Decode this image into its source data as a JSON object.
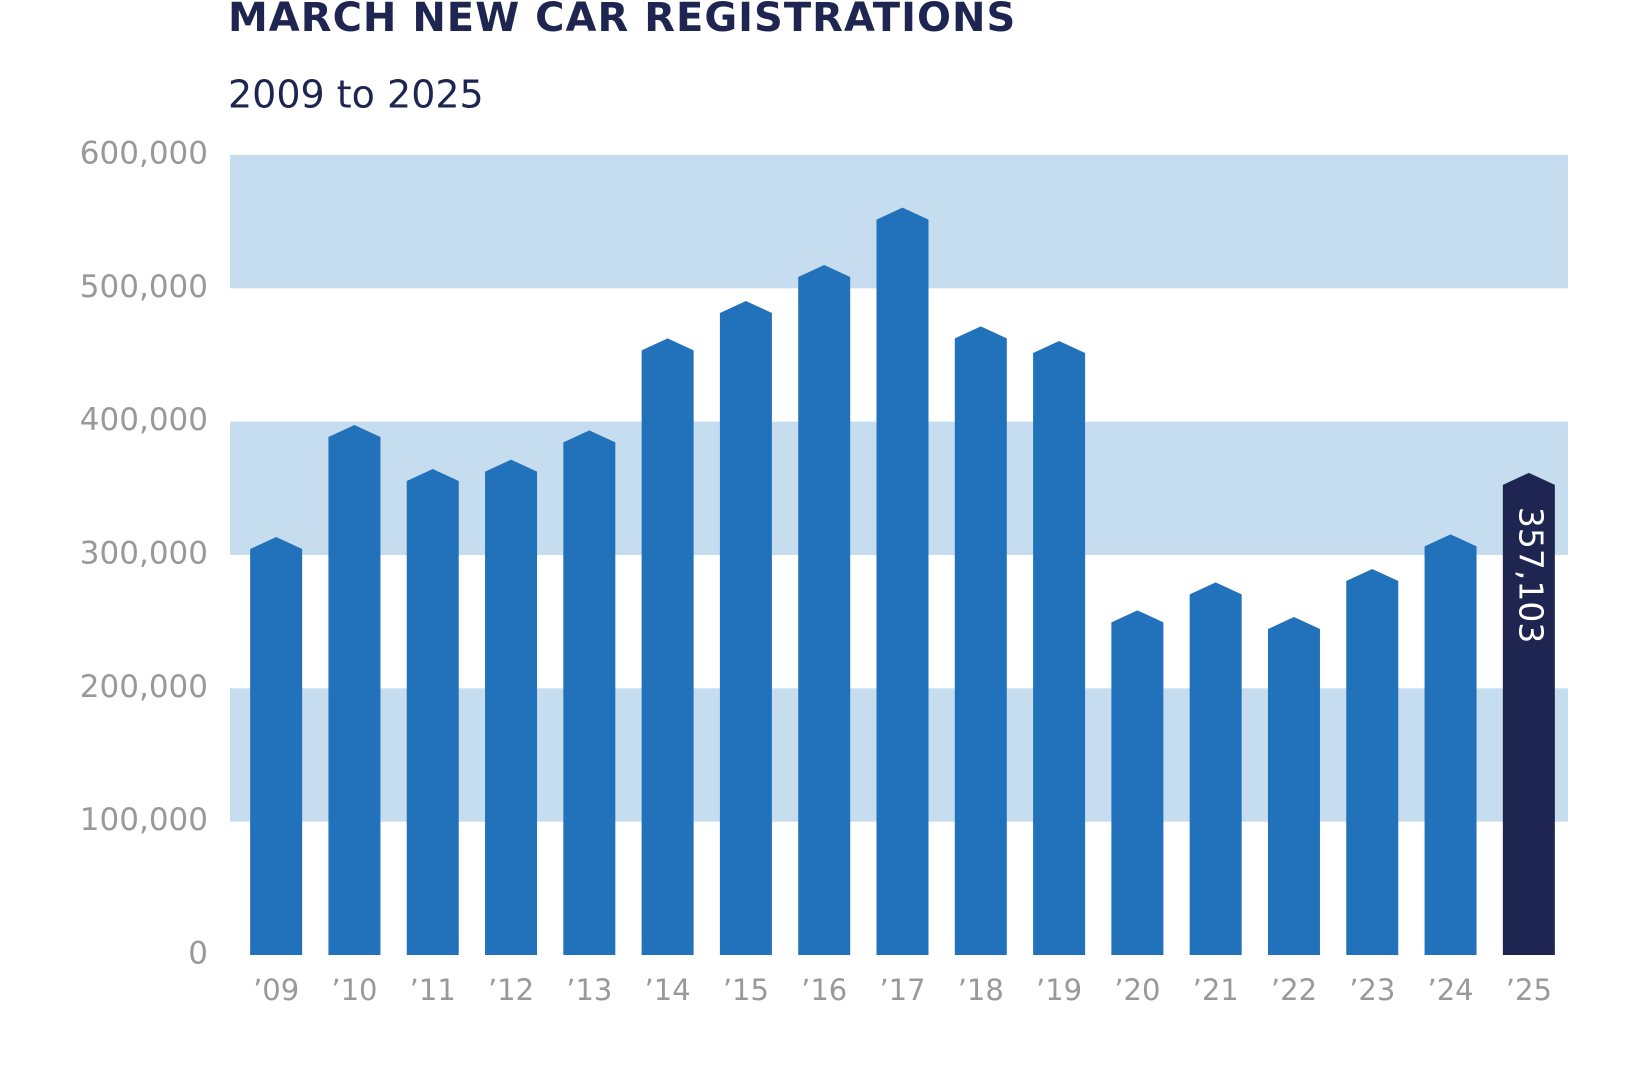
{
  "chart_data": {
    "type": "bar",
    "title": "MARCH NEW CAR REGISTRATIONS",
    "subtitle": "2009 to 2025",
    "categories": [
      "’09",
      "’10",
      "’11",
      "’12",
      "’13",
      "’14",
      "’15",
      "’16",
      "’17",
      "’18",
      "’19",
      "’20",
      "’21",
      "’22",
      "’23",
      "’24",
      "’25"
    ],
    "values": [
      309000,
      393000,
      360000,
      367000,
      389000,
      458000,
      486000,
      513000,
      556000,
      467000,
      456000,
      254000,
      275000,
      249000,
      285000,
      311000,
      357103
    ],
    "value_labels": [
      null,
      null,
      null,
      null,
      null,
      null,
      null,
      null,
      null,
      null,
      null,
      null,
      null,
      null,
      null,
      null,
      "357,103"
    ],
    "colors": [
      "#2272bb",
      "#2272bb",
      "#2272bb",
      "#2272bb",
      "#2272bb",
      "#2272bb",
      "#2272bb",
      "#2272bb",
      "#2272bb",
      "#2272bb",
      "#2272bb",
      "#2272bb",
      "#2272bb",
      "#2272bb",
      "#2272bb",
      "#2272bb",
      "#1e2551"
    ],
    "ylim": [
      0,
      600000
    ],
    "yticks": [
      0,
      {
        "value": 100000,
        "label": "100,000"
      },
      {
        "value": 200000,
        "label": "200,000"
      },
      {
        "value": 300000,
        "label": "300,000"
      },
      {
        "value": 400000,
        "label": "400,000"
      },
      {
        "value": 500000,
        "label": "500,000"
      },
      {
        "value": 600000,
        "label": "600,000"
      }
    ],
    "band_color": "#c6dcef"
  }
}
